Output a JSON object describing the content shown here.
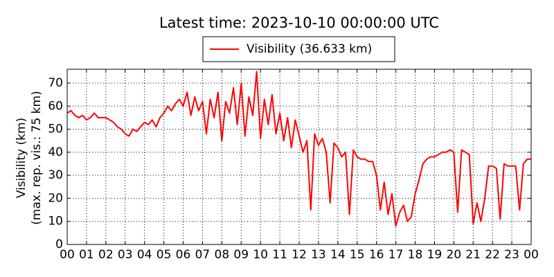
{
  "chart_data": {
    "type": "line",
    "title": "Latest time: 2023-10-10 00:00:00 UTC",
    "ylabel": [
      "Visibility (km)",
      "(max. rep. vis.: 75 km)"
    ],
    "x": [
      0,
      0.2,
      0.4,
      0.6,
      0.8,
      1,
      1.2,
      1.4,
      1.6,
      1.8,
      2,
      2.2,
      2.4,
      2.6,
      2.8,
      3,
      3.2,
      3.4,
      3.6,
      3.8,
      4,
      4.2,
      4.4,
      4.6,
      4.8,
      5,
      5.2,
      5.4,
      5.6,
      5.8,
      6,
      6.2,
      6.4,
      6.6,
      6.8,
      7,
      7.2,
      7.4,
      7.6,
      7.8,
      8,
      8.2,
      8.4,
      8.6,
      8.8,
      9,
      9.2,
      9.4,
      9.6,
      9.8,
      10,
      10.2,
      10.4,
      10.6,
      10.8,
      11,
      11.2,
      11.4,
      11.6,
      11.8,
      12,
      12.2,
      12.4,
      12.6,
      12.8,
      13,
      13.2,
      13.4,
      13.6,
      13.8,
      14,
      14.2,
      14.4,
      14.6,
      14.8,
      15,
      15.2,
      15.4,
      15.6,
      15.8,
      16,
      16.2,
      16.4,
      16.6,
      16.8,
      17,
      17.2,
      17.4,
      17.6,
      17.8,
      18,
      18.2,
      18.4,
      18.6,
      18.8,
      19,
      19.2,
      19.4,
      19.6,
      19.8,
      20,
      20.2,
      20.4,
      20.6,
      20.8,
      21,
      21.2,
      21.4,
      21.6,
      21.8,
      22,
      22.2,
      22.4,
      22.6,
      22.8,
      23,
      23.2,
      23.4,
      23.6,
      23.8,
      24
    ],
    "series": [
      {
        "name": "Visibility (36.633 km)",
        "color": "#ff0000",
        "values": [
          57,
          58,
          56,
          55,
          56,
          54,
          55,
          57,
          55,
          55,
          55,
          54,
          53,
          51,
          50,
          48,
          47,
          50,
          49,
          51,
          53,
          52,
          54,
          51,
          55,
          57,
          60,
          58,
          61,
          63,
          60,
          66,
          56,
          64,
          58,
          62,
          48,
          63,
          55,
          66,
          45,
          62,
          57,
          68,
          52,
          70,
          47,
          64,
          56,
          75,
          46,
          63,
          52,
          65,
          48,
          57,
          45,
          55,
          42,
          54,
          47,
          40,
          45,
          15,
          48,
          43,
          46,
          40,
          18,
          44,
          42,
          38,
          40,
          13,
          41,
          38,
          37,
          37,
          36,
          36,
          30,
          15,
          27,
          13,
          22,
          8,
          14,
          17,
          10,
          12,
          22,
          28,
          35,
          37,
          38,
          38,
          39,
          40,
          40,
          41,
          40,
          14,
          41,
          40,
          39,
          9,
          18,
          10,
          20,
          34,
          34,
          33,
          11,
          35,
          34,
          34,
          34,
          15,
          35,
          37,
          37
        ]
      }
    ],
    "xlim": [
      0,
      24
    ],
    "xticks": [
      {
        "value": 0,
        "label": "00"
      },
      {
        "value": 1,
        "label": "01"
      },
      {
        "value": 2,
        "label": "02"
      },
      {
        "value": 3,
        "label": "03"
      },
      {
        "value": 4,
        "label": "04"
      },
      {
        "value": 5,
        "label": "05"
      },
      {
        "value": 6,
        "label": "06"
      },
      {
        "value": 7,
        "label": "07"
      },
      {
        "value": 8,
        "label": "08"
      },
      {
        "value": 9,
        "label": "09"
      },
      {
        "value": 10,
        "label": "10"
      },
      {
        "value": 11,
        "label": "11"
      },
      {
        "value": 12,
        "label": "12"
      },
      {
        "value": 13,
        "label": "13"
      },
      {
        "value": 14,
        "label": "14"
      },
      {
        "value": 15,
        "label": "15"
      },
      {
        "value": 16,
        "label": "16"
      },
      {
        "value": 17,
        "label": "17"
      },
      {
        "value": 18,
        "label": "18"
      },
      {
        "value": 19,
        "label": "19"
      },
      {
        "value": 20,
        "label": "20"
      },
      {
        "value": 21,
        "label": "21"
      },
      {
        "value": 22,
        "label": "22"
      },
      {
        "value": 23,
        "label": "23"
      },
      {
        "value": 24,
        "label": "00"
      }
    ],
    "ylim": [
      0,
      76
    ],
    "yticks": [
      0,
      10,
      20,
      30,
      40,
      50,
      60,
      70
    ],
    "grid": true
  }
}
